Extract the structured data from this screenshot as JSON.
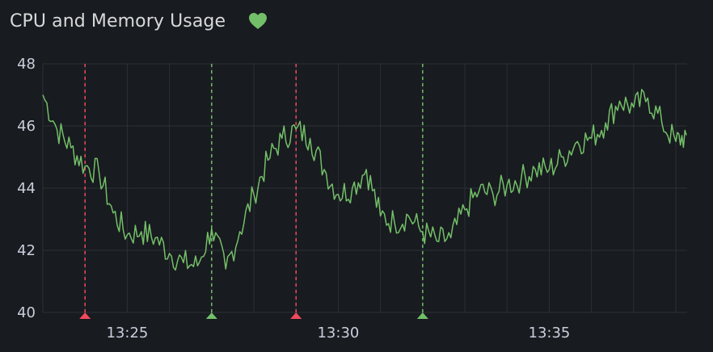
{
  "panel": {
    "title": "CPU and Memory Usage",
    "health_icon": "heart-icon",
    "health_color": "#73bf69"
  },
  "chart_data": {
    "type": "line",
    "title": "CPU and Memory Usage",
    "xlabel": "",
    "ylabel": "",
    "ylim": [
      40,
      48
    ],
    "yticks": [
      "40",
      "42",
      "44",
      "46",
      "48"
    ],
    "xticks": [
      "13:25",
      "13:30",
      "13:35"
    ],
    "grid": true,
    "series": [
      {
        "color": "#73bf69",
        "x": [
          "13:23:00",
          "13:23:20",
          "13:23:40",
          "13:24:00",
          "13:24:20",
          "13:24:40",
          "13:25:00",
          "13:25:20",
          "13:25:40",
          "13:26:00",
          "13:26:20",
          "13:26:40",
          "13:27:00",
          "13:27:20",
          "13:27:40",
          "13:28:00",
          "13:28:20",
          "13:28:40",
          "13:29:00",
          "13:29:20",
          "13:29:40",
          "13:30:00",
          "13:30:20",
          "13:30:40",
          "13:31:00",
          "13:31:20",
          "13:31:40",
          "13:32:00",
          "13:32:20",
          "13:32:40",
          "13:33:00",
          "13:33:20",
          "13:33:40",
          "13:34:00",
          "13:34:20",
          "13:34:40",
          "13:35:00",
          "13:35:20",
          "13:35:40",
          "13:36:00",
          "13:36:20",
          "13:36:40",
          "13:37:00",
          "13:37:20",
          "13:37:40",
          "13:38:00",
          "13:38:15"
        ],
        "values": [
          47.0,
          45.9,
          45.3,
          44.7,
          44.5,
          43.2,
          42.5,
          42.6,
          42.4,
          41.9,
          41.6,
          41.5,
          42.7,
          41.4,
          42.6,
          43.8,
          44.9,
          45.6,
          45.9,
          45.6,
          44.6,
          43.8,
          44.0,
          44.6,
          43.1,
          42.9,
          43.1,
          42.6,
          42.3,
          42.4,
          43.3,
          43.9,
          43.8,
          44.1,
          44.3,
          44.6,
          44.6,
          45.0,
          45.5,
          45.6,
          46.1,
          46.8,
          46.6,
          46.9,
          46.1,
          45.5,
          45.7
        ]
      }
    ],
    "annotations": [
      {
        "time": "13:24:00",
        "color": "#f2495c"
      },
      {
        "time": "13:27:00",
        "color": "#73bf69"
      },
      {
        "time": "13:29:00",
        "color": "#f2495c"
      },
      {
        "time": "13:32:00",
        "color": "#73bf69"
      }
    ]
  }
}
